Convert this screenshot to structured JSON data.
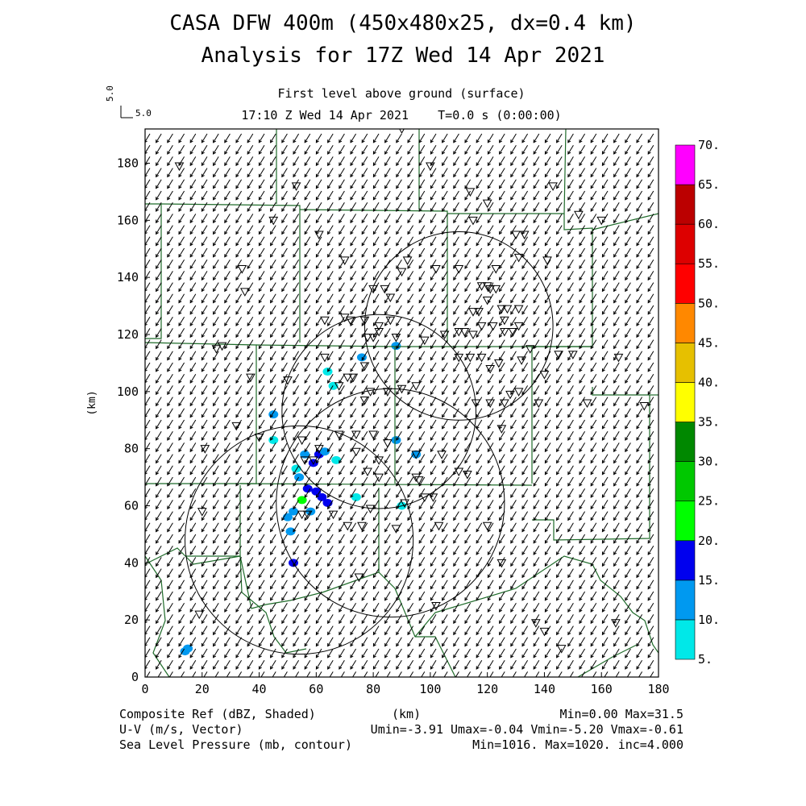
{
  "title": "CASA DFW 400m (450x480x25, dx=0.4 km)",
  "subtitle": "Analysis for 17Z Wed 14 Apr 2021",
  "level_label": "First level above ground (surface)",
  "time_label": "17:10 Z Wed 14 Apr 2021    T=0.0 s (0:00:00)",
  "ref_vector": {
    "label": "5.0",
    "label2": "5.0",
    "value": 5.0
  },
  "footer": {
    "left1": "Composite Ref (dBZ, Shaded)",
    "center1": "(km)",
    "right1": "Min=0.00 Max=31.5",
    "left2": "U-V (m/s, Vector)",
    "right2": "Umin=-3.91 Umax=-0.04 Vmin=-5.20 Vmax=-0.61",
    "left3": "Sea Level Pressure (mb, contour)",
    "right3": "Min=1016. Max=1020. inc=4.000"
  },
  "colorbar": {
    "labels": [
      "5.",
      "10.",
      "15.",
      "20.",
      "25.",
      "30.",
      "35.",
      "40.",
      "45.",
      "50.",
      "55.",
      "60.",
      "65.",
      "70."
    ],
    "colors": [
      "#00e8e8",
      "#0099f0",
      "#0000ee",
      "#00ff00",
      "#00c800",
      "#008800",
      "#ffff00",
      "#e6c000",
      "#ff8800",
      "#ff0000",
      "#dd0000",
      "#bb0000",
      "#ff00ff"
    ]
  },
  "chart_data": {
    "type": "scatter",
    "xlabel": "",
    "ylabel": "(km)",
    "xlim": [
      0,
      180
    ],
    "ylim": [
      0,
      192
    ],
    "xticks": [
      0,
      20,
      40,
      60,
      80,
      100,
      120,
      140,
      160,
      180
    ],
    "yticks": [
      0,
      20,
      40,
      60,
      80,
      100,
      120,
      140,
      160,
      180
    ],
    "wind_field": {
      "description": "uniform southwest-pointing vectors",
      "u_mean": -2.2,
      "v_mean": -3.6
    },
    "radar_range_rings": [
      {
        "cx": 54,
        "cy": 48,
        "r": 40
      },
      {
        "cx": 86,
        "cy": 61,
        "r": 40
      },
      {
        "cx": 82,
        "cy": 93,
        "r": 34
      },
      {
        "cx": 110,
        "cy": 123,
        "r": 33
      }
    ],
    "reflectivity_echoes": [
      {
        "x": 54,
        "y": 70,
        "dbz": 12
      },
      {
        "x": 56,
        "y": 78,
        "dbz": 14
      },
      {
        "x": 59,
        "y": 75,
        "dbz": 15
      },
      {
        "x": 61,
        "y": 78,
        "dbz": 16
      },
      {
        "x": 63,
        "y": 79,
        "dbz": 12
      },
      {
        "x": 53,
        "y": 73,
        "dbz": 8
      },
      {
        "x": 57,
        "y": 66,
        "dbz": 17
      },
      {
        "x": 60,
        "y": 65,
        "dbz": 18
      },
      {
        "x": 62,
        "y": 63,
        "dbz": 16
      },
      {
        "x": 64,
        "y": 61,
        "dbz": 17
      },
      {
        "x": 55,
        "y": 62,
        "dbz": 22
      },
      {
        "x": 52,
        "y": 58,
        "dbz": 14
      },
      {
        "x": 50,
        "y": 56,
        "dbz": 11
      },
      {
        "x": 51,
        "y": 51,
        "dbz": 10
      },
      {
        "x": 52,
        "y": 40,
        "dbz": 16
      },
      {
        "x": 58,
        "y": 58,
        "dbz": 12
      },
      {
        "x": 67,
        "y": 76,
        "dbz": 8
      },
      {
        "x": 45,
        "y": 92,
        "dbz": 12
      },
      {
        "x": 64,
        "y": 107,
        "dbz": 9
      },
      {
        "x": 76,
        "y": 112,
        "dbz": 12
      },
      {
        "x": 88,
        "y": 116,
        "dbz": 10
      },
      {
        "x": 95,
        "y": 78,
        "dbz": 13
      },
      {
        "x": 88,
        "y": 83,
        "dbz": 11
      },
      {
        "x": 90,
        "y": 60,
        "dbz": 8
      },
      {
        "x": 14,
        "y": 9,
        "dbz": 12
      },
      {
        "x": 15,
        "y": 10,
        "dbz": 14
      },
      {
        "x": 74,
        "y": 63,
        "dbz": 7
      },
      {
        "x": 66,
        "y": 102,
        "dbz": 8
      },
      {
        "x": 45,
        "y": 83,
        "dbz": 7
      }
    ],
    "stations": [
      [
        12,
        179
      ],
      [
        53,
        172
      ],
      [
        90,
        192
      ],
      [
        100,
        179
      ],
      [
        114,
        170
      ],
      [
        120,
        166
      ],
      [
        143,
        172
      ],
      [
        45,
        160
      ],
      [
        61,
        155
      ],
      [
        115,
        160
      ],
      [
        130,
        155
      ],
      [
        133,
        155
      ],
      [
        152,
        162
      ],
      [
        160,
        160
      ],
      [
        34,
        143
      ],
      [
        35,
        135
      ],
      [
        70,
        146
      ],
      [
        90,
        142
      ],
      [
        92,
        146
      ],
      [
        102,
        143
      ],
      [
        110,
        143
      ],
      [
        123,
        143
      ],
      [
        120,
        137
      ],
      [
        131,
        147
      ],
      [
        141,
        146
      ],
      [
        80,
        136
      ],
      [
        84,
        136
      ],
      [
        86,
        133
      ],
      [
        118,
        137
      ],
      [
        121,
        136
      ],
      [
        123,
        136
      ],
      [
        125,
        129
      ],
      [
        127,
        129
      ],
      [
        120,
        132
      ],
      [
        115,
        128
      ],
      [
        126,
        125
      ],
      [
        131,
        129
      ],
      [
        131,
        123
      ],
      [
        110,
        121
      ],
      [
        112,
        121
      ],
      [
        115,
        120
      ],
      [
        117,
        128
      ],
      [
        118,
        123
      ],
      [
        122,
        123
      ],
      [
        126,
        121
      ],
      [
        129,
        121
      ],
      [
        98,
        118
      ],
      [
        105,
        120
      ],
      [
        63,
        125
      ],
      [
        70,
        126
      ],
      [
        72,
        125
      ],
      [
        77,
        125
      ],
      [
        82,
        123
      ],
      [
        86,
        125
      ],
      [
        88,
        119
      ],
      [
        78,
        119
      ],
      [
        80,
        119
      ],
      [
        82,
        121
      ],
      [
        132,
        111
      ],
      [
        135,
        115
      ],
      [
        145,
        113
      ],
      [
        150,
        113
      ],
      [
        166,
        112
      ],
      [
        25,
        115
      ],
      [
        27,
        116
      ],
      [
        37,
        105
      ],
      [
        50,
        104
      ],
      [
        63,
        112
      ],
      [
        68,
        102
      ],
      [
        71,
        105
      ],
      [
        73,
        105
      ],
      [
        77,
        97
      ],
      [
        79,
        100
      ],
      [
        77,
        109
      ],
      [
        85,
        100
      ],
      [
        90,
        101
      ],
      [
        95,
        102
      ],
      [
        110,
        112
      ],
      [
        114,
        112
      ],
      [
        118,
        112
      ],
      [
        121,
        108
      ],
      [
        124,
        110
      ],
      [
        116,
        96
      ],
      [
        121,
        96
      ],
      [
        126,
        96
      ],
      [
        128,
        99
      ],
      [
        131,
        100
      ],
      [
        140,
        106
      ],
      [
        155,
        96
      ],
      [
        175,
        95
      ],
      [
        138,
        96
      ],
      [
        32,
        88
      ],
      [
        21,
        80
      ],
      [
        40,
        84
      ],
      [
        55,
        83
      ],
      [
        61,
        80
      ],
      [
        68,
        85
      ],
      [
        74,
        85
      ],
      [
        80,
        85
      ],
      [
        85,
        82
      ],
      [
        74,
        79
      ],
      [
        82,
        76
      ],
      [
        95,
        78
      ],
      [
        104,
        78
      ],
      [
        110,
        72
      ],
      [
        125,
        87
      ],
      [
        56,
        76
      ],
      [
        59,
        76
      ],
      [
        78,
        72
      ],
      [
        96,
        69
      ],
      [
        113,
        71
      ],
      [
        82,
        70
      ],
      [
        57,
        57
      ],
      [
        66,
        57
      ],
      [
        79,
        59
      ],
      [
        91,
        61
      ],
      [
        98,
        63
      ],
      [
        101,
        63
      ],
      [
        71,
        53
      ],
      [
        76,
        53
      ],
      [
        88,
        52
      ],
      [
        95,
        70
      ],
      [
        103,
        53
      ],
      [
        120,
        53
      ],
      [
        125,
        40
      ],
      [
        75,
        35
      ],
      [
        102,
        25
      ],
      [
        137,
        19
      ],
      [
        140,
        16
      ],
      [
        165,
        19
      ],
      [
        146,
        10
      ],
      [
        19,
        22
      ],
      [
        20,
        58
      ],
      [
        55,
        57
      ]
    ]
  }
}
